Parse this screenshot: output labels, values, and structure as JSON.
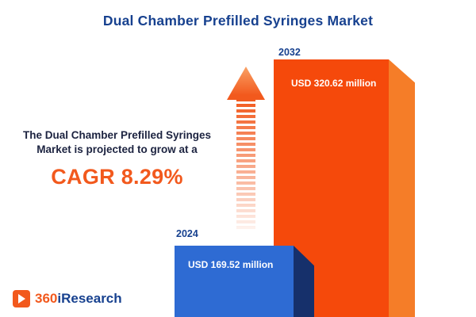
{
  "title": "Dual Chamber Prefilled Syringes Market",
  "annotation": {
    "line1": "The Dual Chamber Prefilled Syringes",
    "line2": "Market is projected to grow at a",
    "cagr": "CAGR 8.29%"
  },
  "logo": {
    "prefix": "360",
    "suffix": "iResearch"
  },
  "colors": {
    "title_navy": "#17418f",
    "accent_orange": "#f2591d",
    "bar_blue": "#2e6bd3",
    "bar_blue_side": "#16306b",
    "bar_orange": "#f5490b",
    "bar_orange_side": "#f57d28"
  },
  "chart_data": {
    "type": "bar",
    "title": "Dual Chamber Prefilled Syringes Market",
    "categories": [
      "2024",
      "2032"
    ],
    "values": [
      169.52,
      320.62
    ],
    "unit": "USD million",
    "cagr_percent": 8.29,
    "legend": "none",
    "bars": [
      {
        "year": "2024",
        "label": "USD 169.52 million",
        "value": 169.52,
        "color": "blue"
      },
      {
        "year": "2032",
        "label": "USD 320.62 million",
        "value": 320.62,
        "color": "orange"
      }
    ]
  }
}
